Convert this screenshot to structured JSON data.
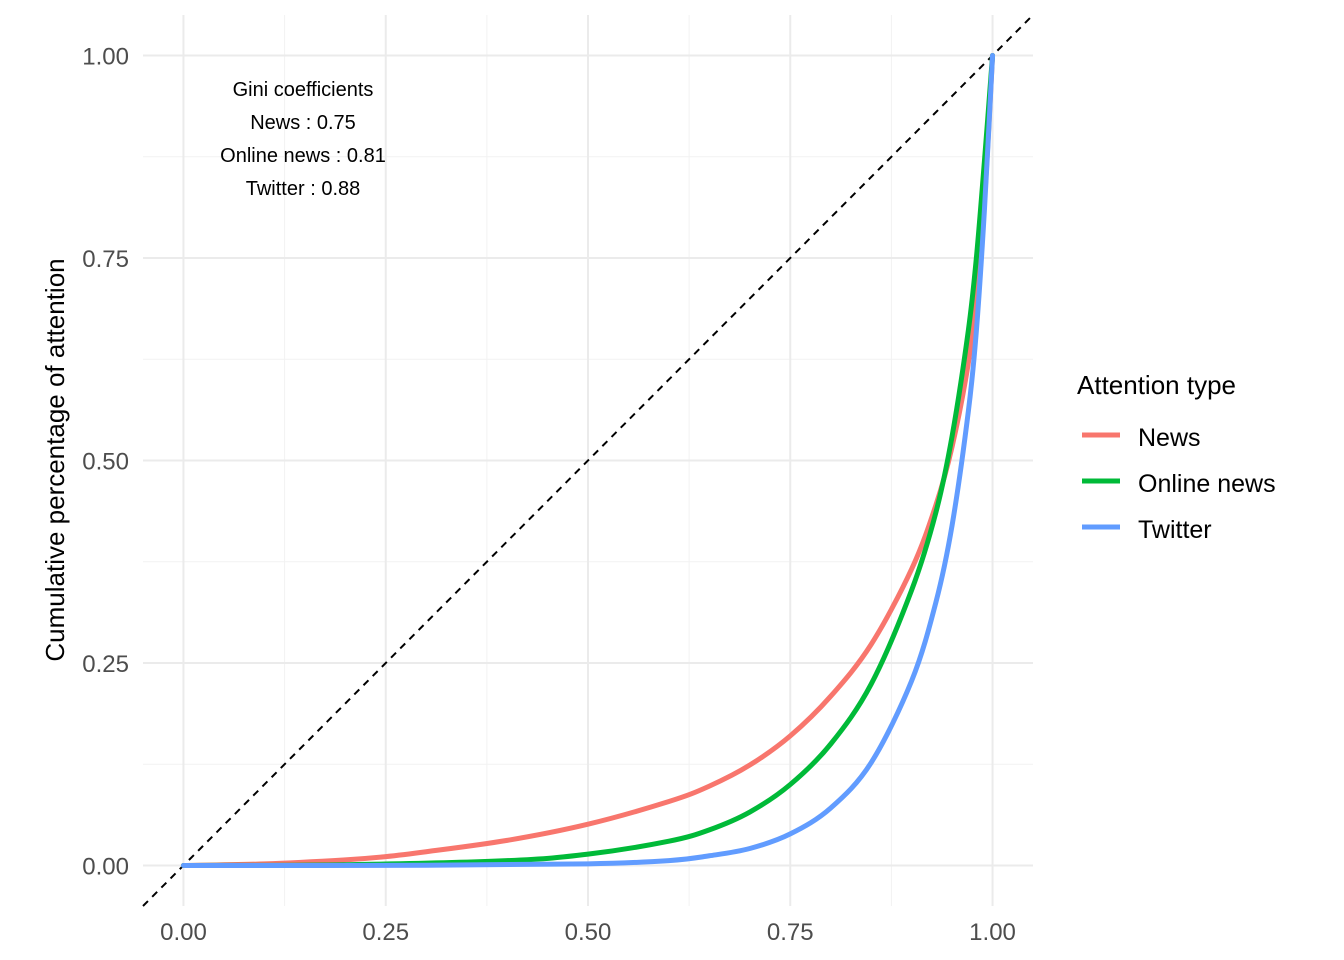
{
  "chart_data": {
    "type": "line",
    "title": "",
    "xlabel": "",
    "ylabel": "Cumulative percentage of attention",
    "xlim": [
      -0.05,
      1.05
    ],
    "ylim": [
      -0.05,
      1.05
    ],
    "x_ticks": [
      "0.00",
      "0.25",
      "0.50",
      "0.75",
      "1.00"
    ],
    "y_ticks": [
      "0.00",
      "0.25",
      "0.50",
      "0.75",
      "1.00"
    ],
    "grid": true,
    "legend": {
      "title": "Attention type",
      "position": "right"
    },
    "reference_line": {
      "type": "diagonal",
      "style": "dashed",
      "color": "#000000"
    },
    "annotation": {
      "lines": [
        "Gini coefficients",
        "News : 0.75",
        "Online news : 0.81",
        "Twitter : 0.88"
      ]
    },
    "series": [
      {
        "name": "News",
        "color": "#F8766D",
        "x": [
          0,
          0.1,
          0.2,
          0.25,
          0.3,
          0.4,
          0.5,
          0.6,
          0.65,
          0.7,
          0.75,
          0.8,
          0.85,
          0.9,
          0.93,
          0.95,
          0.97,
          0.98,
          0.99,
          1.0
        ],
        "y": [
          0,
          0.002,
          0.007,
          0.011,
          0.017,
          0.031,
          0.051,
          0.079,
          0.098,
          0.124,
          0.16,
          0.209,
          0.273,
          0.366,
          0.445,
          0.517,
          0.62,
          0.705,
          0.82,
          1.0
        ]
      },
      {
        "name": "Online news",
        "color": "#00BA38",
        "x": [
          0,
          0.2,
          0.4,
          0.5,
          0.6,
          0.65,
          0.7,
          0.75,
          0.8,
          0.85,
          0.9,
          0.93,
          0.95,
          0.97,
          0.98,
          0.99,
          1.0
        ],
        "y": [
          0,
          0.001,
          0.006,
          0.014,
          0.03,
          0.044,
          0.066,
          0.1,
          0.15,
          0.224,
          0.34,
          0.436,
          0.53,
          0.66,
          0.75,
          0.87,
          1.0
        ]
      },
      {
        "name": "Twitter",
        "color": "#619CFF",
        "x": [
          0,
          0.3,
          0.5,
          0.6,
          0.65,
          0.7,
          0.75,
          0.8,
          0.85,
          0.9,
          0.93,
          0.95,
          0.97,
          0.98,
          0.99,
          1.0
        ],
        "y": [
          0,
          0.0003,
          0.002,
          0.006,
          0.012,
          0.021,
          0.039,
          0.071,
          0.127,
          0.228,
          0.325,
          0.42,
          0.56,
          0.66,
          0.81,
          1.0
        ]
      }
    ]
  }
}
